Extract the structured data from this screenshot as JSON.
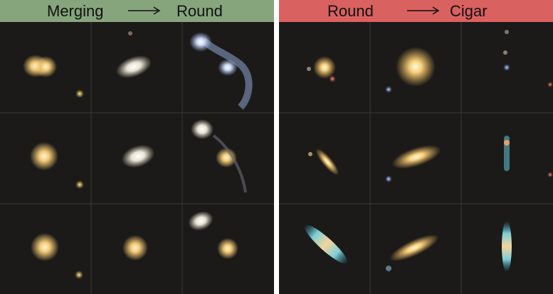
{
  "panels": [
    {
      "from_label": "Merging",
      "to_label": "Round",
      "header_color": "#86a57c"
    },
    {
      "from_label": "Round",
      "to_label": "Cigar",
      "header_color": "#d9615f"
    }
  ],
  "grid": {
    "rows": 3,
    "cols": 3
  },
  "arrow_icon": "right-arrow-icon",
  "colors": {
    "background": "#1b1a18",
    "grid_line": "#3a3a36"
  }
}
